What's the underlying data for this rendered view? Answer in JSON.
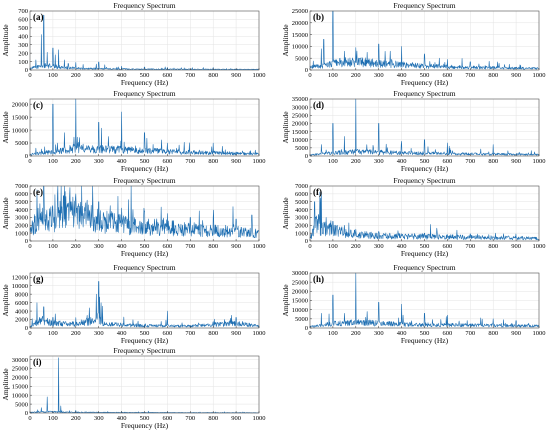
{
  "figure": {
    "title_common": "Frequency Spectrum",
    "xlabel_common": "Frequency (Hz)",
    "ylabel_common": "Amplitude"
  },
  "chart_data": [
    {
      "id": "a",
      "type": "line",
      "panel_label": "(a)",
      "title": "Frequency Spectrum",
      "xlabel": "Frequency (Hz)",
      "ylabel": "Amplitude",
      "xlim": [
        0,
        1000
      ],
      "ylim": [
        0,
        700
      ],
      "xticks": [
        0,
        100,
        200,
        300,
        400,
        500,
        600,
        700,
        800,
        900,
        1000
      ],
      "yticks": [
        0,
        100,
        200,
        300,
        400,
        500,
        600,
        700
      ],
      "grid": true,
      "color": "#1f6fb2",
      "baseline": [
        [
          0,
          20
        ],
        [
          40,
          45
        ],
        [
          80,
          55
        ],
        [
          120,
          40
        ],
        [
          200,
          22
        ],
        [
          300,
          16
        ],
        [
          500,
          11
        ],
        [
          700,
          9
        ],
        [
          1000,
          7
        ]
      ],
      "peaks": [
        [
          25,
          120
        ],
        [
          50,
          420
        ],
        [
          60,
          650
        ],
        [
          75,
          210
        ],
        [
          100,
          260
        ],
        [
          110,
          180
        ],
        [
          125,
          240
        ],
        [
          150,
          120
        ],
        [
          200,
          90
        ],
        [
          290,
          70
        ],
        [
          300,
          95
        ],
        [
          400,
          45
        ],
        [
          500,
          35
        ],
        [
          600,
          30
        ],
        [
          800,
          30
        ]
      ]
    },
    {
      "id": "b",
      "type": "line",
      "panel_label": "(b)",
      "title": "Frequency Spectrum",
      "xlabel": "Frequency (Hz)",
      "ylabel": "Amplitude",
      "xlim": [
        0,
        1000
      ],
      "ylim": [
        0,
        25000
      ],
      "xticks": [
        0,
        100,
        200,
        300,
        400,
        500,
        600,
        700,
        800,
        900,
        1000
      ],
      "yticks": [
        0,
        5000,
        10000,
        15000,
        20000,
        25000
      ],
      "grid": true,
      "color": "#1f6fb2",
      "baseline": [
        [
          0,
          1200
        ],
        [
          60,
          2000
        ],
        [
          120,
          3500
        ],
        [
          200,
          3800
        ],
        [
          300,
          3000
        ],
        [
          400,
          2400
        ],
        [
          500,
          1800
        ],
        [
          700,
          1200
        ],
        [
          1000,
          700
        ]
      ],
      "peaks": [
        [
          50,
          9000
        ],
        [
          60,
          13000
        ],
        [
          100,
          25000
        ],
        [
          150,
          8000
        ],
        [
          200,
          9500
        ],
        [
          250,
          7500
        ],
        [
          300,
          11000
        ],
        [
          350,
          8000
        ],
        [
          400,
          10000
        ],
        [
          500,
          6500
        ],
        [
          600,
          4500
        ],
        [
          700,
          3500
        ]
      ]
    },
    {
      "id": "c",
      "type": "line",
      "panel_label": "(c)",
      "title": "Frequency Spectrum",
      "xlabel": "Frequency (Hz)",
      "ylabel": "Amplitude",
      "xlim": [
        0,
        1000
      ],
      "ylim": [
        0,
        22000
      ],
      "xticks": [
        0,
        100,
        200,
        300,
        400,
        500,
        600,
        700,
        800,
        900,
        1000
      ],
      "yticks": [
        0,
        5000,
        10000,
        15000,
        20000
      ],
      "grid": true,
      "color": "#1f6fb2",
      "baseline": [
        [
          0,
          600
        ],
        [
          100,
          1800
        ],
        [
          200,
          3200
        ],
        [
          300,
          2800
        ],
        [
          400,
          2600
        ],
        [
          500,
          2200
        ],
        [
          700,
          1500
        ],
        [
          1000,
          900
        ]
      ],
      "peaks": [
        [
          100,
          20000
        ],
        [
          150,
          9000
        ],
        [
          200,
          22000
        ],
        [
          300,
          13000
        ],
        [
          400,
          17000
        ],
        [
          500,
          9000
        ],
        [
          600,
          5000
        ],
        [
          800,
          5000
        ]
      ]
    },
    {
      "id": "d",
      "type": "line",
      "panel_label": "(d)",
      "title": "Frequency Spectrum",
      "xlabel": "Frequency (Hz)",
      "ylabel": "Amplitude",
      "xlim": [
        0,
        1000
      ],
      "ylim": [
        0,
        35000
      ],
      "xticks": [
        0,
        100,
        200,
        300,
        400,
        500,
        600,
        700,
        800,
        900,
        1000
      ],
      "yticks": [
        0,
        5000,
        10000,
        15000,
        20000,
        25000,
        30000,
        35000
      ],
      "grid": true,
      "color": "#1f6fb2",
      "baseline": [
        [
          0,
          800
        ],
        [
          100,
          2000
        ],
        [
          200,
          2800
        ],
        [
          300,
          2500
        ],
        [
          400,
          2000
        ],
        [
          600,
          1600
        ],
        [
          1000,
          900
        ]
      ],
      "peaks": [
        [
          50,
          7000
        ],
        [
          100,
          20000
        ],
        [
          150,
          12000
        ],
        [
          200,
          35000
        ],
        [
          300,
          20000
        ],
        [
          400,
          9000
        ],
        [
          500,
          10000
        ],
        [
          600,
          8000
        ],
        [
          800,
          7000
        ]
      ]
    },
    {
      "id": "e",
      "type": "line",
      "panel_label": "(e)",
      "title": "Frequency Spectrum",
      "xlabel": "Frequency (Hz)",
      "ylabel": "Amplitude",
      "xlim": [
        0,
        1000
      ],
      "ylim": [
        0,
        7000
      ],
      "xticks": [
        0,
        100,
        200,
        300,
        400,
        500,
        600,
        700,
        800,
        900,
        1000
      ],
      "yticks": [
        0,
        1000,
        2000,
        3000,
        4000,
        5000,
        6000,
        7000
      ],
      "grid": true,
      "color": "#1f6fb2",
      "baseline": [
        [
          0,
          1500
        ],
        [
          50,
          3500
        ],
        [
          100,
          3000
        ],
        [
          150,
          4500
        ],
        [
          200,
          3800
        ],
        [
          300,
          2800
        ],
        [
          400,
          2300
        ],
        [
          500,
          2000
        ],
        [
          600,
          1800
        ],
        [
          700,
          1600
        ],
        [
          800,
          1400
        ],
        [
          900,
          1300
        ],
        [
          1000,
          1000
        ]
      ],
      "peaks": [
        [
          30,
          6500
        ],
        [
          60,
          7000
        ],
        [
          120,
          6000
        ],
        [
          150,
          7000
        ],
        [
          175,
          6800
        ],
        [
          200,
          6000
        ],
        [
          250,
          5200
        ],
        [
          300,
          5000
        ],
        [
          350,
          4500
        ],
        [
          400,
          4200
        ],
        [
          450,
          4000
        ],
        [
          500,
          3800
        ],
        [
          600,
          3500
        ],
        [
          700,
          3000
        ],
        [
          800,
          3000
        ],
        [
          900,
          2800
        ]
      ]
    },
    {
      "id": "f",
      "type": "line",
      "panel_label": "(f)",
      "title": "Frequency Spectrum",
      "xlabel": "Frequency (Hz)",
      "ylabel": "Amplitude",
      "xlim": [
        0,
        1000
      ],
      "ylim": [
        0,
        7000
      ],
      "xticks": [
        0,
        100,
        200,
        300,
        400,
        500,
        600,
        700,
        800,
        900,
        1000
      ],
      "yticks": [
        0,
        1000,
        2000,
        3000,
        4000,
        5000,
        6000,
        7000
      ],
      "grid": true,
      "color": "#1f6fb2",
      "baseline": [
        [
          0,
          300
        ],
        [
          30,
          2500
        ],
        [
          50,
          1800
        ],
        [
          100,
          1500
        ],
        [
          150,
          1200
        ],
        [
          200,
          900
        ],
        [
          300,
          700
        ],
        [
          500,
          600
        ],
        [
          700,
          500
        ],
        [
          1000,
          350
        ]
      ],
      "peaks": [
        [
          20,
          5000
        ],
        [
          50,
          6200
        ],
        [
          70,
          3000
        ],
        [
          100,
          2500
        ],
        [
          150,
          2000
        ],
        [
          200,
          1500
        ],
        [
          300,
          1200
        ],
        [
          500,
          1000
        ],
        [
          700,
          900
        ]
      ]
    },
    {
      "id": "g",
      "type": "line",
      "panel_label": "(g)",
      "title": "Frequency Spectrum",
      "xlabel": "Frequency (Hz)",
      "ylabel": "Amplitude",
      "xlim": [
        0,
        1000
      ],
      "ylim": [
        0,
        13000
      ],
      "xticks": [
        0,
        100,
        200,
        300,
        400,
        500,
        600,
        700,
        800,
        900,
        1000
      ],
      "yticks": [
        0,
        2000,
        4000,
        6000,
        8000,
        10000,
        12000
      ],
      "grid": true,
      "color": "#1f6fb2",
      "baseline": [
        [
          0,
          400
        ],
        [
          50,
          2000
        ],
        [
          100,
          1200
        ],
        [
          200,
          1000
        ],
        [
          280,
          2000
        ],
        [
          300,
          3000
        ],
        [
          320,
          1000
        ],
        [
          500,
          600
        ],
        [
          700,
          500
        ],
        [
          900,
          1200
        ],
        [
          1000,
          500
        ]
      ],
      "peaks": [
        [
          30,
          6000
        ],
        [
          60,
          5000
        ],
        [
          100,
          2500
        ],
        [
          250,
          3000
        ],
        [
          290,
          8000
        ],
        [
          300,
          11000
        ],
        [
          310,
          6000
        ],
        [
          600,
          4000
        ],
        [
          800,
          1500
        ],
        [
          850,
          2000
        ],
        [
          880,
          3000
        ],
        [
          900,
          2500
        ]
      ]
    },
    {
      "id": "h",
      "type": "line",
      "panel_label": "(h)",
      "title": "Frequency Spectrum",
      "xlabel": "Frequency (Hz)",
      "ylabel": "Amplitude",
      "xlim": [
        0,
        1000
      ],
      "ylim": [
        0,
        30000
      ],
      "xticks": [
        0,
        100,
        200,
        300,
        400,
        500,
        600,
        700,
        800,
        900,
        1000
      ],
      "yticks": [
        0,
        5000,
        10000,
        15000,
        20000,
        25000,
        30000
      ],
      "grid": true,
      "color": "#1f6fb2",
      "baseline": [
        [
          0,
          800
        ],
        [
          100,
          2500
        ],
        [
          200,
          3200
        ],
        [
          300,
          2800
        ],
        [
          400,
          2200
        ],
        [
          600,
          1800
        ],
        [
          1000,
          1200
        ]
      ],
      "peaks": [
        [
          50,
          8000
        ],
        [
          100,
          18000
        ],
        [
          150,
          8000
        ],
        [
          200,
          30000
        ],
        [
          250,
          9000
        ],
        [
          300,
          14000
        ],
        [
          400,
          13000
        ],
        [
          500,
          8000
        ],
        [
          600,
          7000
        ],
        [
          800,
          5000
        ],
        [
          900,
          4000
        ]
      ]
    },
    {
      "id": "i",
      "type": "line",
      "panel_label": "(i)",
      "title": "Frequency Spectrum",
      "xlabel": "Frequency (Hz)",
      "ylabel": "Amplitude",
      "xlim": [
        0,
        1000
      ],
      "ylim": [
        0,
        32000
      ],
      "xticks": [
        0,
        100,
        200,
        300,
        400,
        500,
        600,
        700,
        800,
        900,
        1000
      ],
      "yticks": [
        0,
        5000,
        10000,
        15000,
        20000,
        25000,
        30000
      ],
      "grid": true,
      "color": "#1f6fb2",
      "baseline": [
        [
          0,
          300
        ],
        [
          50,
          800
        ],
        [
          100,
          700
        ],
        [
          150,
          500
        ],
        [
          300,
          350
        ],
        [
          600,
          250
        ],
        [
          1000,
          150
        ]
      ],
      "peaks": [
        [
          50,
          3000
        ],
        [
          75,
          9000
        ],
        [
          125,
          31000
        ],
        [
          135,
          4000
        ],
        [
          200,
          1500
        ],
        [
          400,
          800
        ],
        [
          600,
          600
        ]
      ]
    }
  ]
}
